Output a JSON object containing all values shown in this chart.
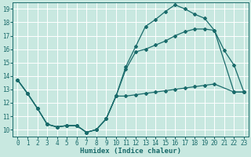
{
  "xlabel": "Humidex (Indice chaleur)",
  "bg_color": "#c8e8e0",
  "line_color": "#1a6b6b",
  "grid_color": "#ffffff",
  "xlim": [
    -0.5,
    23.5
  ],
  "ylim": [
    9.5,
    19.5
  ],
  "xticks": [
    0,
    1,
    2,
    3,
    4,
    5,
    6,
    7,
    8,
    9,
    10,
    11,
    12,
    13,
    14,
    15,
    16,
    17,
    18,
    19,
    20,
    21,
    22,
    23
  ],
  "yticks": [
    10,
    11,
    12,
    13,
    14,
    15,
    16,
    17,
    18,
    19
  ],
  "line1_x": [
    0,
    1,
    2,
    3,
    4,
    5,
    6,
    7,
    8,
    9,
    10,
    11,
    12,
    13,
    14,
    15,
    16,
    17,
    18,
    19,
    20,
    21,
    22,
    23
  ],
  "line1_y": [
    13.7,
    12.7,
    11.6,
    10.4,
    10.2,
    10.3,
    10.3,
    9.8,
    10.0,
    10.8,
    12.5,
    14.7,
    16.2,
    17.7,
    18.2,
    18.8,
    19.3,
    19.0,
    18.6,
    18.3,
    17.4,
    15.9,
    14.8,
    12.8
  ],
  "line2_x": [
    0,
    1,
    2,
    3,
    4,
    5,
    6,
    7,
    8,
    9,
    10,
    11,
    12,
    13,
    14,
    15,
    16,
    17,
    18,
    19,
    20,
    22,
    23
  ],
  "line2_y": [
    13.7,
    12.7,
    11.6,
    10.4,
    10.2,
    10.3,
    10.3,
    9.8,
    10.0,
    10.8,
    12.5,
    14.5,
    15.8,
    16.0,
    16.3,
    16.6,
    17.0,
    17.3,
    17.5,
    17.5,
    17.4,
    12.8,
    12.8
  ],
  "line3_x": [
    0,
    1,
    2,
    3,
    4,
    5,
    6,
    7,
    8,
    9,
    10,
    11,
    12,
    13,
    14,
    15,
    16,
    17,
    18,
    19,
    20,
    22,
    23
  ],
  "line3_y": [
    13.7,
    12.7,
    11.6,
    10.4,
    10.2,
    10.3,
    10.3,
    9.8,
    10.0,
    10.8,
    12.5,
    12.5,
    12.6,
    12.7,
    12.8,
    12.9,
    13.0,
    13.1,
    13.2,
    13.3,
    13.4,
    12.8,
    12.8
  ],
  "markersize": 2.0,
  "linewidth": 0.9,
  "label_fontsize": 6.5,
  "tick_fontsize": 5.5
}
